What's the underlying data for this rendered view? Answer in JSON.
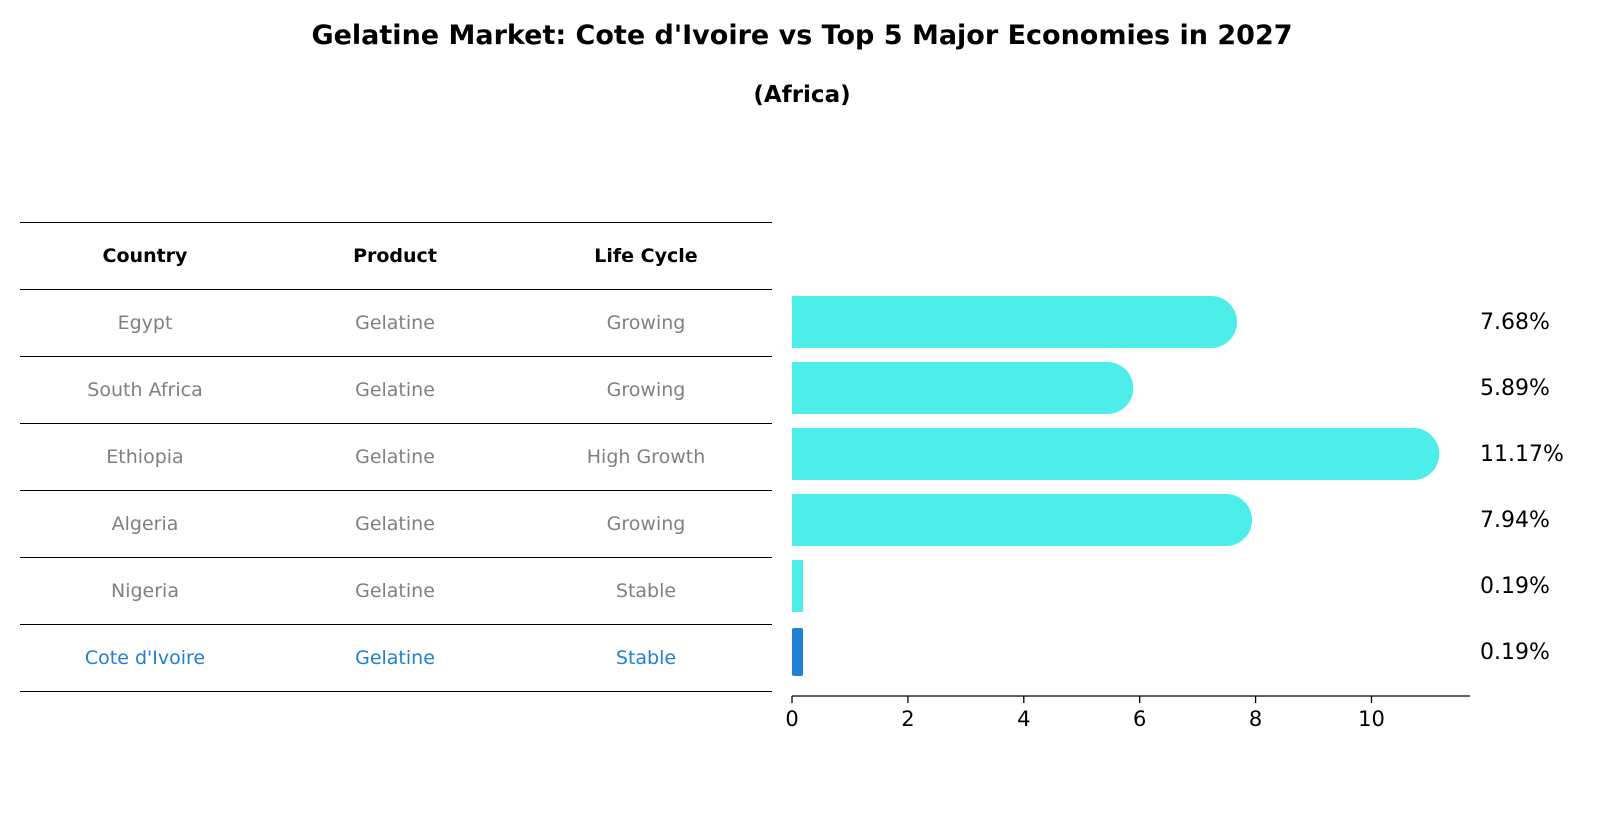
{
  "title": "Gelatine Market: Cote d'Ivoire vs Top 5 Major Economies in 2027",
  "subtitle": "(Africa)",
  "table": {
    "headers": [
      "Country",
      "Product",
      "Life Cycle"
    ],
    "rows": [
      [
        "Egypt",
        "Gelatine",
        "Growing"
      ],
      [
        "South Africa",
        "Gelatine",
        "Growing"
      ],
      [
        "Ethiopia",
        "Gelatine",
        "High Growth"
      ],
      [
        "Algeria",
        "Gelatine",
        "Growing"
      ],
      [
        "Nigeria",
        "Gelatine",
        "Stable"
      ],
      [
        "Cote d'Ivoire",
        "Gelatine",
        "Stable"
      ]
    ],
    "highlight_row": 5
  },
  "colors": {
    "bar": "#4deeea",
    "highlight": "#1f80d6",
    "muted_text": "#808080"
  },
  "chart_data": {
    "type": "bar",
    "orientation": "horizontal",
    "categories": [
      "Egypt",
      "South Africa",
      "Ethiopia",
      "Algeria",
      "Nigeria",
      "Cote d'Ivoire"
    ],
    "values": [
      7.68,
      5.89,
      11.17,
      7.94,
      0.19,
      0.19
    ],
    "value_labels": [
      "7.68%",
      "5.89%",
      "11.17%",
      "7.94%",
      "0.19%",
      "0.19%"
    ],
    "xlim": [
      0,
      11.7
    ],
    "xticks": [
      0,
      2,
      4,
      6,
      8,
      10
    ],
    "highlight_index": 5,
    "grid": false
  }
}
